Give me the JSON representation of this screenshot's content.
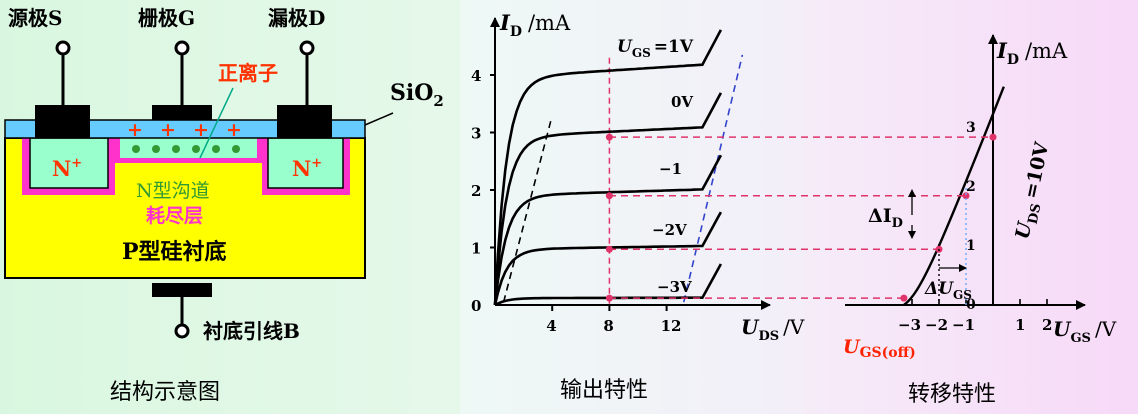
{
  "structure": {
    "source_label": "源极S",
    "gate_label": "栅极G",
    "drain_label": "漏极D",
    "positive_ion_label": "正离子",
    "sio2_label": "SiO",
    "sio2_sub": "2",
    "nplus_left": "N",
    "nplus_right": "N",
    "nplus_sup": "+",
    "channel_label": "N型沟道",
    "depletion_label": "耗尽层",
    "substrate_label": "P型硅衬底",
    "substrate_lead_label": "衬底引线B",
    "ions": [
      "+",
      "+",
      "+",
      "+"
    ],
    "caption": "结构示意图"
  },
  "output_chart": {
    "y_label": "I",
    "y_label_sub": "D",
    "y_label_unit": "/mA",
    "x_label": "U",
    "x_label_sub": "DS",
    "x_label_unit": "/V",
    "vgs_label": "U",
    "vgs_sub": "GS",
    "vgs_value": "=1V",
    "curve_labels": [
      "0V",
      "−1",
      "−2V",
      "−3V"
    ],
    "caption": "输出特性"
  },
  "transfer_chart": {
    "y_label": "I",
    "y_label_sub": "D",
    "y_label_unit": "/mA",
    "x_label": "U",
    "x_label_sub": "GS",
    "x_label_unit": "/V",
    "uds_label": "U",
    "uds_sub": "DS",
    "uds_value": "=10V",
    "delta_id": "ΔI",
    "delta_id_sub": "D",
    "delta_ugs": "ΔU",
    "delta_ugs_sub": "GS",
    "ugs_off": "U",
    "ugs_off_sub": "GS(off)",
    "caption": "转移特性"
  },
  "chart_data": [
    {
      "type": "line",
      "title": "",
      "xlabel": "UDS /V",
      "ylabel": "ID /mA",
      "x_ticks": [
        "4",
        "8",
        "12"
      ],
      "y_ticks": [
        "0",
        "1",
        "2",
        "3",
        "4"
      ],
      "series": [
        {
          "name": "UGS =1V",
          "x": [
            0,
            1,
            2,
            4,
            8,
            12,
            14,
            15
          ],
          "y": [
            0,
            2.5,
            3.6,
            3.85,
            3.95,
            4.0,
            4.05,
            4.4
          ]
        },
        {
          "name": "0V",
          "x": [
            0,
            1,
            2,
            4,
            8,
            12,
            14,
            15
          ],
          "y": [
            0,
            2.0,
            2.7,
            2.85,
            2.92,
            2.95,
            3.0,
            3.3
          ]
        },
        {
          "name": "−1",
          "x": [
            0,
            1,
            2,
            4,
            8,
            12,
            14,
            15
          ],
          "y": [
            0,
            1.3,
            1.75,
            1.85,
            1.9,
            1.93,
            1.97,
            2.3
          ]
        },
        {
          "name": "−2V",
          "x": [
            0,
            1,
            2,
            4,
            8,
            12,
            14,
            15
          ],
          "y": [
            0,
            0.7,
            0.9,
            0.95,
            0.97,
            1.0,
            1.05,
            1.35
          ]
        },
        {
          "name": "−3V",
          "x": [
            0,
            1,
            2,
            4,
            8,
            12,
            14,
            15
          ],
          "y": [
            0,
            0.05,
            0.08,
            0.1,
            0.12,
            0.14,
            0.2,
            0.4
          ]
        }
      ],
      "marker_x": 8,
      "marker_points": [
        {
          "x": 8,
          "y": 2.92
        },
        {
          "x": 8,
          "y": 1.9
        },
        {
          "x": 8,
          "y": 0.97
        },
        {
          "x": 8,
          "y": 0.12
        }
      ]
    },
    {
      "type": "line",
      "title": "",
      "xlabel": "UGS /V",
      "ylabel": "ID /mA",
      "x_ticks": [
        "−3",
        "−2",
        "−1",
        "1",
        "2"
      ],
      "y_ticks": [
        "0",
        "1",
        "2",
        "3"
      ],
      "series": [
        {
          "name": "UDS =10V",
          "x": [
            -3,
            -2,
            -1,
            0,
            1
          ],
          "y": [
            0,
            0.97,
            1.9,
            2.92,
            3.9
          ]
        }
      ],
      "marker_points": [
        {
          "x": -3,
          "y": 0
        },
        {
          "x": -2,
          "y": 0.97
        },
        {
          "x": -1,
          "y": 1.9
        },
        {
          "x": 0,
          "y": 2.92
        }
      ]
    }
  ]
}
